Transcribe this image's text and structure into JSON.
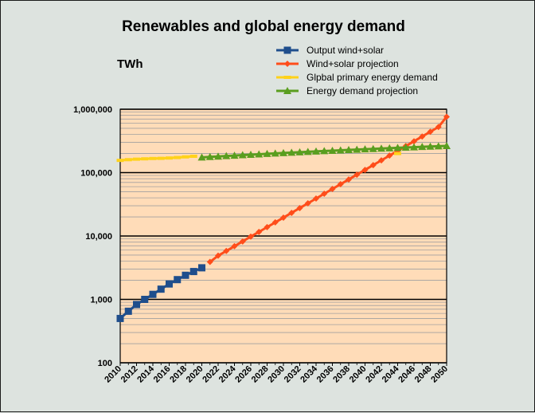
{
  "chart_data": {
    "type": "line",
    "title": "Renewables and global energy demand",
    "ylabel": "TWh",
    "xlabel": "",
    "yscale": "log",
    "ylim": [
      100,
      1000000
    ],
    "xlim": [
      2010,
      2050
    ],
    "legend_position": "top-right",
    "grid": true,
    "plot_background": "#ffdcb8",
    "page_background": "#dde3df",
    "y_ticks": [
      "100",
      "1,000",
      "10,000",
      "100,000",
      "1,000,000"
    ],
    "y_tick_values": [
      100,
      1000,
      10000,
      100000,
      1000000
    ],
    "x_ticks": [
      "2010",
      "2012",
      "2014",
      "2016",
      "2018",
      "2020",
      "2022",
      "2024",
      "2026",
      "2028",
      "2030",
      "2032",
      "2034",
      "2036",
      "2038",
      "2040",
      "2042",
      "2044",
      "2046",
      "2048",
      "2050"
    ],
    "series": [
      {
        "name": "Output wind+solar",
        "color": "#1f4e8c",
        "marker": "square",
        "x": [
          2010,
          2011,
          2012,
          2013,
          2014,
          2015,
          2016,
          2017,
          2018,
          2019,
          2020
        ],
        "values": [
          500,
          650,
          830,
          1000,
          1200,
          1450,
          1750,
          2050,
          2400,
          2750,
          3150
        ]
      },
      {
        "name": "Wind+solar projection",
        "color": "#ff4d1a",
        "marker": "diamond",
        "x": [
          2021,
          2022,
          2023,
          2024,
          2025,
          2026,
          2027,
          2028,
          2029,
          2030,
          2031,
          2032,
          2033,
          2034,
          2035,
          2036,
          2037,
          2038,
          2039,
          2040,
          2041,
          2042,
          2043,
          2044,
          2045,
          2046,
          2047,
          2048,
          2049,
          2050
        ],
        "values": [
          3900,
          4900,
          5800,
          6900,
          8200,
          9800,
          11600,
          13800,
          16400,
          19500,
          23200,
          27600,
          32800,
          39000,
          46400,
          55200,
          65600,
          78000,
          92800,
          110400,
          131300,
          156100,
          185600,
          220700,
          262500,
          312100,
          371100,
          441300,
          524800,
          760000
        ]
      },
      {
        "name": "Glpbal primary energy demand",
        "color": "#ffd21a",
        "marker": "dash",
        "x": [
          2010,
          2011,
          2012,
          2013,
          2014,
          2015,
          2016,
          2017,
          2018,
          2019
        ],
        "values": [
          156000,
          160000,
          163000,
          165000,
          167000,
          168000,
          170000,
          173000,
          177000,
          181000
        ],
        "extra_point": {
          "x": 2044,
          "value": 200000
        }
      },
      {
        "name": "Energy demand projection",
        "color": "#5a9e1f",
        "marker": "triangle",
        "x": [
          2020,
          2021,
          2022,
          2023,
          2024,
          2025,
          2026,
          2027,
          2028,
          2029,
          2030,
          2031,
          2032,
          2033,
          2034,
          2035,
          2036,
          2037,
          2038,
          2039,
          2040,
          2041,
          2042,
          2043,
          2044,
          2045,
          2046,
          2047,
          2048,
          2049,
          2050
        ],
        "values": [
          174000,
          177000,
          180000,
          183000,
          186000,
          189000,
          192000,
          195000,
          198000,
          201000,
          204000,
          207000,
          210000,
          213000,
          216000,
          219000,
          222000,
          225000,
          228000,
          231000,
          234000,
          237000,
          240000,
          243000,
          246000,
          249000,
          252000,
          255000,
          258000,
          261000,
          264000
        ]
      }
    ]
  }
}
